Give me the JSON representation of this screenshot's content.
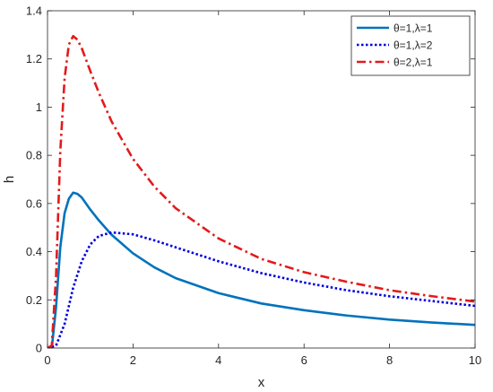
{
  "chart_data": {
    "type": "line",
    "xlabel": "x",
    "ylabel": "h",
    "xlim": [
      0,
      10
    ],
    "ylim": [
      0,
      1.4
    ],
    "xticks": [
      0,
      2,
      4,
      6,
      8,
      10
    ],
    "yticks": [
      0,
      0.2,
      0.4,
      0.6,
      0.8,
      1,
      1.2,
      1.4
    ],
    "xtick_labels": [
      "0",
      "2",
      "4",
      "6",
      "8",
      "10"
    ],
    "ytick_labels": [
      "0",
      "0.2",
      "0.4",
      "0.6",
      "0.8",
      "1",
      "1.2",
      "1.4"
    ],
    "grid": false,
    "legend_position": "top-right",
    "series": [
      {
        "name": "θ=1,λ=1",
        "color": "#0072BD",
        "style": "solid",
        "x": [
          0,
          0.1,
          0.2,
          0.3,
          0.4,
          0.5,
          0.6,
          0.7,
          0.8,
          1,
          1.2,
          1.5,
          2,
          2.5,
          3,
          4,
          5,
          6,
          7,
          8,
          9,
          10
        ],
        "y": [
          0,
          0.0,
          0.17,
          0.42,
          0.56,
          0.62,
          0.645,
          0.64,
          0.625,
          0.575,
          0.53,
          0.47,
          0.393,
          0.335,
          0.29,
          0.228,
          0.185,
          0.157,
          0.135,
          0.118,
          0.106,
          0.096
        ]
      },
      {
        "name": "θ=1,λ=2",
        "color": "#0000E0",
        "style": "dotted",
        "x": [
          0,
          0.2,
          0.4,
          0.6,
          0.8,
          1,
          1.2,
          1.5,
          2,
          2.5,
          3,
          4,
          5,
          6,
          7,
          8,
          9,
          10
        ],
        "y": [
          0,
          0.01,
          0.1,
          0.25,
          0.36,
          0.43,
          0.465,
          0.48,
          0.472,
          0.447,
          0.418,
          0.36,
          0.311,
          0.272,
          0.24,
          0.215,
          0.195,
          0.175
        ]
      },
      {
        "name": "θ=2,λ=1",
        "color": "#E31A1C",
        "style": "dashdot",
        "x": [
          0,
          0.1,
          0.2,
          0.3,
          0.4,
          0.5,
          0.6,
          0.7,
          0.8,
          1,
          1.2,
          1.5,
          2,
          2.5,
          3,
          4,
          5,
          6,
          7,
          8,
          9,
          10
        ],
        "y": [
          0,
          0.01,
          0.3,
          0.82,
          1.12,
          1.26,
          1.295,
          1.28,
          1.245,
          1.15,
          1.06,
          0.94,
          0.785,
          0.67,
          0.58,
          0.455,
          0.37,
          0.315,
          0.275,
          0.24,
          0.215,
          0.193
        ]
      }
    ]
  }
}
